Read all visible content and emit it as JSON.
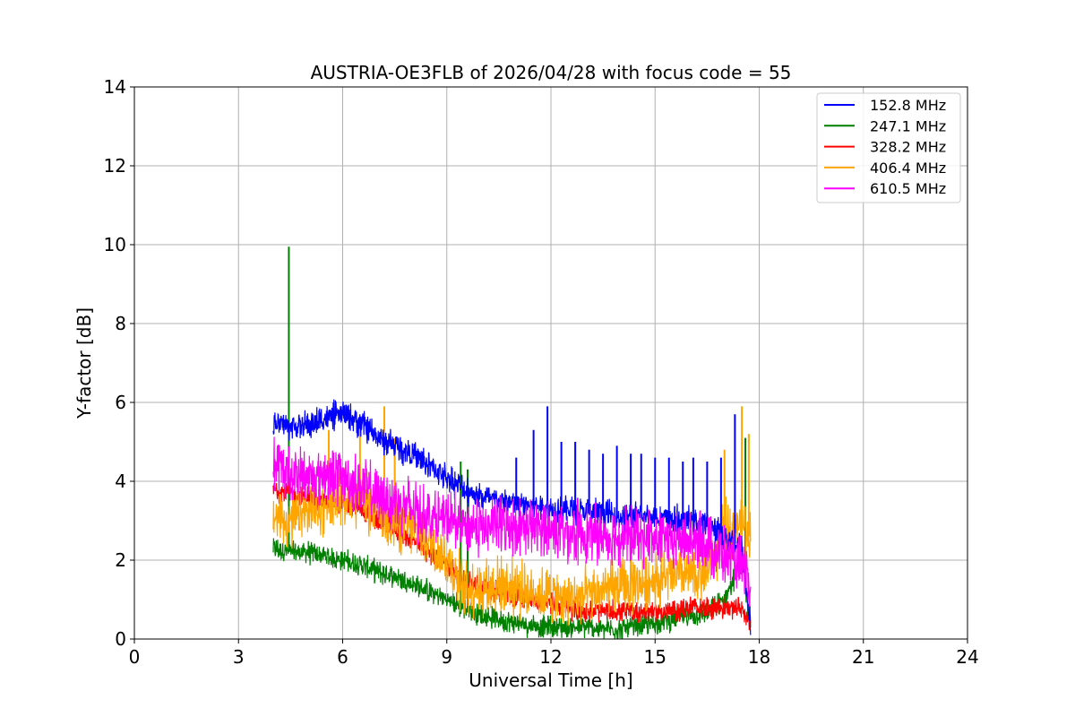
{
  "chart_data": {
    "type": "line",
    "title": "AUSTRIA-OE3FLB of 2026/04/28 with focus code = 55",
    "xlabel": "Universal Time [h]",
    "ylabel": "Y-factor [dB]",
    "xlim": [
      0,
      24
    ],
    "ylim": [
      0,
      14
    ],
    "xticks": [
      0,
      3,
      6,
      9,
      12,
      15,
      18,
      21,
      24
    ],
    "yticks": [
      0,
      2,
      4,
      6,
      8,
      10,
      12,
      14
    ],
    "grid": true,
    "legend_position": "top-right",
    "series": [
      {
        "name": "152.8 MHz",
        "color": "#0000ff",
        "x": [
          4.0,
          4.5,
          5.0,
          5.5,
          6.0,
          6.5,
          7.0,
          7.5,
          8.0,
          8.5,
          9.0,
          9.5,
          10.0,
          10.5,
          11.0,
          11.5,
          12.0,
          12.5,
          13.0,
          13.5,
          14.0,
          14.5,
          15.0,
          15.5,
          16.0,
          16.5,
          17.0,
          17.5,
          17.75
        ],
        "y": [
          5.5,
          5.4,
          5.4,
          5.6,
          5.7,
          5.5,
          5.1,
          4.9,
          4.7,
          4.4,
          4.1,
          3.8,
          3.6,
          3.5,
          3.4,
          3.4,
          3.3,
          3.3,
          3.2,
          3.2,
          3.1,
          3.1,
          3.1,
          3.0,
          3.0,
          2.9,
          2.6,
          2.3,
          0.3
        ],
        "spikes": [
          {
            "x": 11.0,
            "y": 4.6
          },
          {
            "x": 11.5,
            "y": 5.3
          },
          {
            "x": 11.9,
            "y": 5.9
          },
          {
            "x": 12.3,
            "y": 5.0
          },
          {
            "x": 12.7,
            "y": 5.0
          },
          {
            "x": 13.1,
            "y": 4.8
          },
          {
            "x": 13.5,
            "y": 4.7
          },
          {
            "x": 13.9,
            "y": 4.9
          },
          {
            "x": 14.3,
            "y": 4.7
          },
          {
            "x": 14.6,
            "y": 4.7
          },
          {
            "x": 15.0,
            "y": 4.6
          },
          {
            "x": 15.4,
            "y": 4.6
          },
          {
            "x": 15.8,
            "y": 4.5
          },
          {
            "x": 16.1,
            "y": 4.6
          },
          {
            "x": 16.5,
            "y": 4.5
          },
          {
            "x": 16.9,
            "y": 4.6
          },
          {
            "x": 17.3,
            "y": 5.7
          }
        ]
      },
      {
        "name": "247.1 MHz",
        "color": "#008000",
        "x": [
          4.0,
          4.5,
          5.0,
          5.5,
          6.0,
          6.5,
          7.0,
          7.5,
          8.0,
          8.5,
          9.0,
          9.5,
          10.0,
          10.5,
          11.0,
          11.5,
          12.0,
          12.5,
          13.0,
          13.5,
          14.0,
          14.5,
          15.0,
          15.5,
          16.0,
          16.5,
          17.0,
          17.5,
          17.75
        ],
        "y": [
          2.3,
          2.2,
          2.2,
          2.1,
          2.0,
          1.9,
          1.7,
          1.6,
          1.4,
          1.2,
          1.0,
          0.8,
          0.6,
          0.5,
          0.4,
          0.35,
          0.3,
          0.3,
          0.3,
          0.25,
          0.25,
          0.3,
          0.4,
          0.5,
          0.6,
          0.65,
          1.0,
          2.0,
          0.3
        ],
        "spikes": [
          {
            "x": 4.45,
            "y": 9.95
          },
          {
            "x": 9.4,
            "y": 4.5
          },
          {
            "x": 9.6,
            "y": 4.3
          },
          {
            "x": 17.6,
            "y": 5.1
          }
        ]
      },
      {
        "name": "328.2 MHz",
        "color": "#ff0000",
        "x": [
          4.0,
          4.5,
          5.0,
          5.5,
          6.0,
          6.5,
          7.0,
          7.5,
          8.0,
          8.5,
          9.0,
          9.5,
          10.0,
          10.5,
          11.0,
          11.5,
          12.0,
          12.5,
          13.0,
          13.5,
          14.0,
          14.5,
          15.0,
          15.5,
          16.0,
          16.5,
          17.0,
          17.5,
          17.75
        ],
        "y": [
          3.8,
          3.7,
          3.6,
          3.5,
          3.4,
          3.3,
          3.0,
          2.8,
          2.5,
          2.2,
          1.9,
          1.5,
          1.3,
          1.2,
          1.1,
          1.0,
          0.9,
          0.8,
          0.7,
          0.7,
          0.7,
          0.7,
          0.7,
          0.7,
          0.8,
          0.8,
          0.8,
          0.8,
          0.3
        ],
        "spikes": []
      },
      {
        "name": "406.4 MHz",
        "color": "#ffa500",
        "x": [
          4.0,
          4.5,
          5.0,
          5.5,
          6.0,
          6.5,
          7.0,
          7.5,
          8.0,
          8.5,
          9.0,
          9.5,
          10.0,
          10.5,
          11.0,
          11.5,
          12.0,
          12.5,
          13.0,
          13.5,
          14.0,
          14.5,
          15.0,
          15.5,
          16.0,
          16.5,
          17.0,
          17.5,
          17.75
        ],
        "y": [
          3.1,
          3.0,
          3.2,
          3.4,
          3.7,
          3.6,
          3.2,
          3.0,
          2.8,
          2.5,
          2.0,
          1.3,
          1.3,
          1.4,
          1.3,
          1.2,
          1.1,
          1.0,
          1.1,
          1.2,
          1.3,
          1.4,
          1.5,
          1.6,
          1.6,
          1.7,
          2.7,
          3.0,
          2.5
        ],
        "spikes": [
          {
            "x": 5.6,
            "y": 5.3
          },
          {
            "x": 6.5,
            "y": 5.6
          },
          {
            "x": 7.2,
            "y": 5.9
          },
          {
            "x": 7.5,
            "y": 5.1
          },
          {
            "x": 17.0,
            "y": 4.8
          },
          {
            "x": 17.5,
            "y": 5.9
          },
          {
            "x": 17.7,
            "y": 5.2
          }
        ]
      },
      {
        "name": "610.5 MHz",
        "color": "#ff00ff",
        "x": [
          4.0,
          4.5,
          5.0,
          5.5,
          6.0,
          6.5,
          7.0,
          7.5,
          8.0,
          8.5,
          9.0,
          9.5,
          10.0,
          10.5,
          11.0,
          11.5,
          12.0,
          12.5,
          13.0,
          13.5,
          14.0,
          14.5,
          15.0,
          15.5,
          16.0,
          16.5,
          17.0,
          17.5,
          17.75
        ],
        "y": [
          4.4,
          4.2,
          4.1,
          4.2,
          4.1,
          3.9,
          3.6,
          3.5,
          3.3,
          3.1,
          3.0,
          2.9,
          2.8,
          2.9,
          2.9,
          2.8,
          2.8,
          2.7,
          2.7,
          2.6,
          2.6,
          2.6,
          2.5,
          2.5,
          2.5,
          2.4,
          2.1,
          1.8,
          1.2
        ],
        "spikes": []
      }
    ]
  }
}
